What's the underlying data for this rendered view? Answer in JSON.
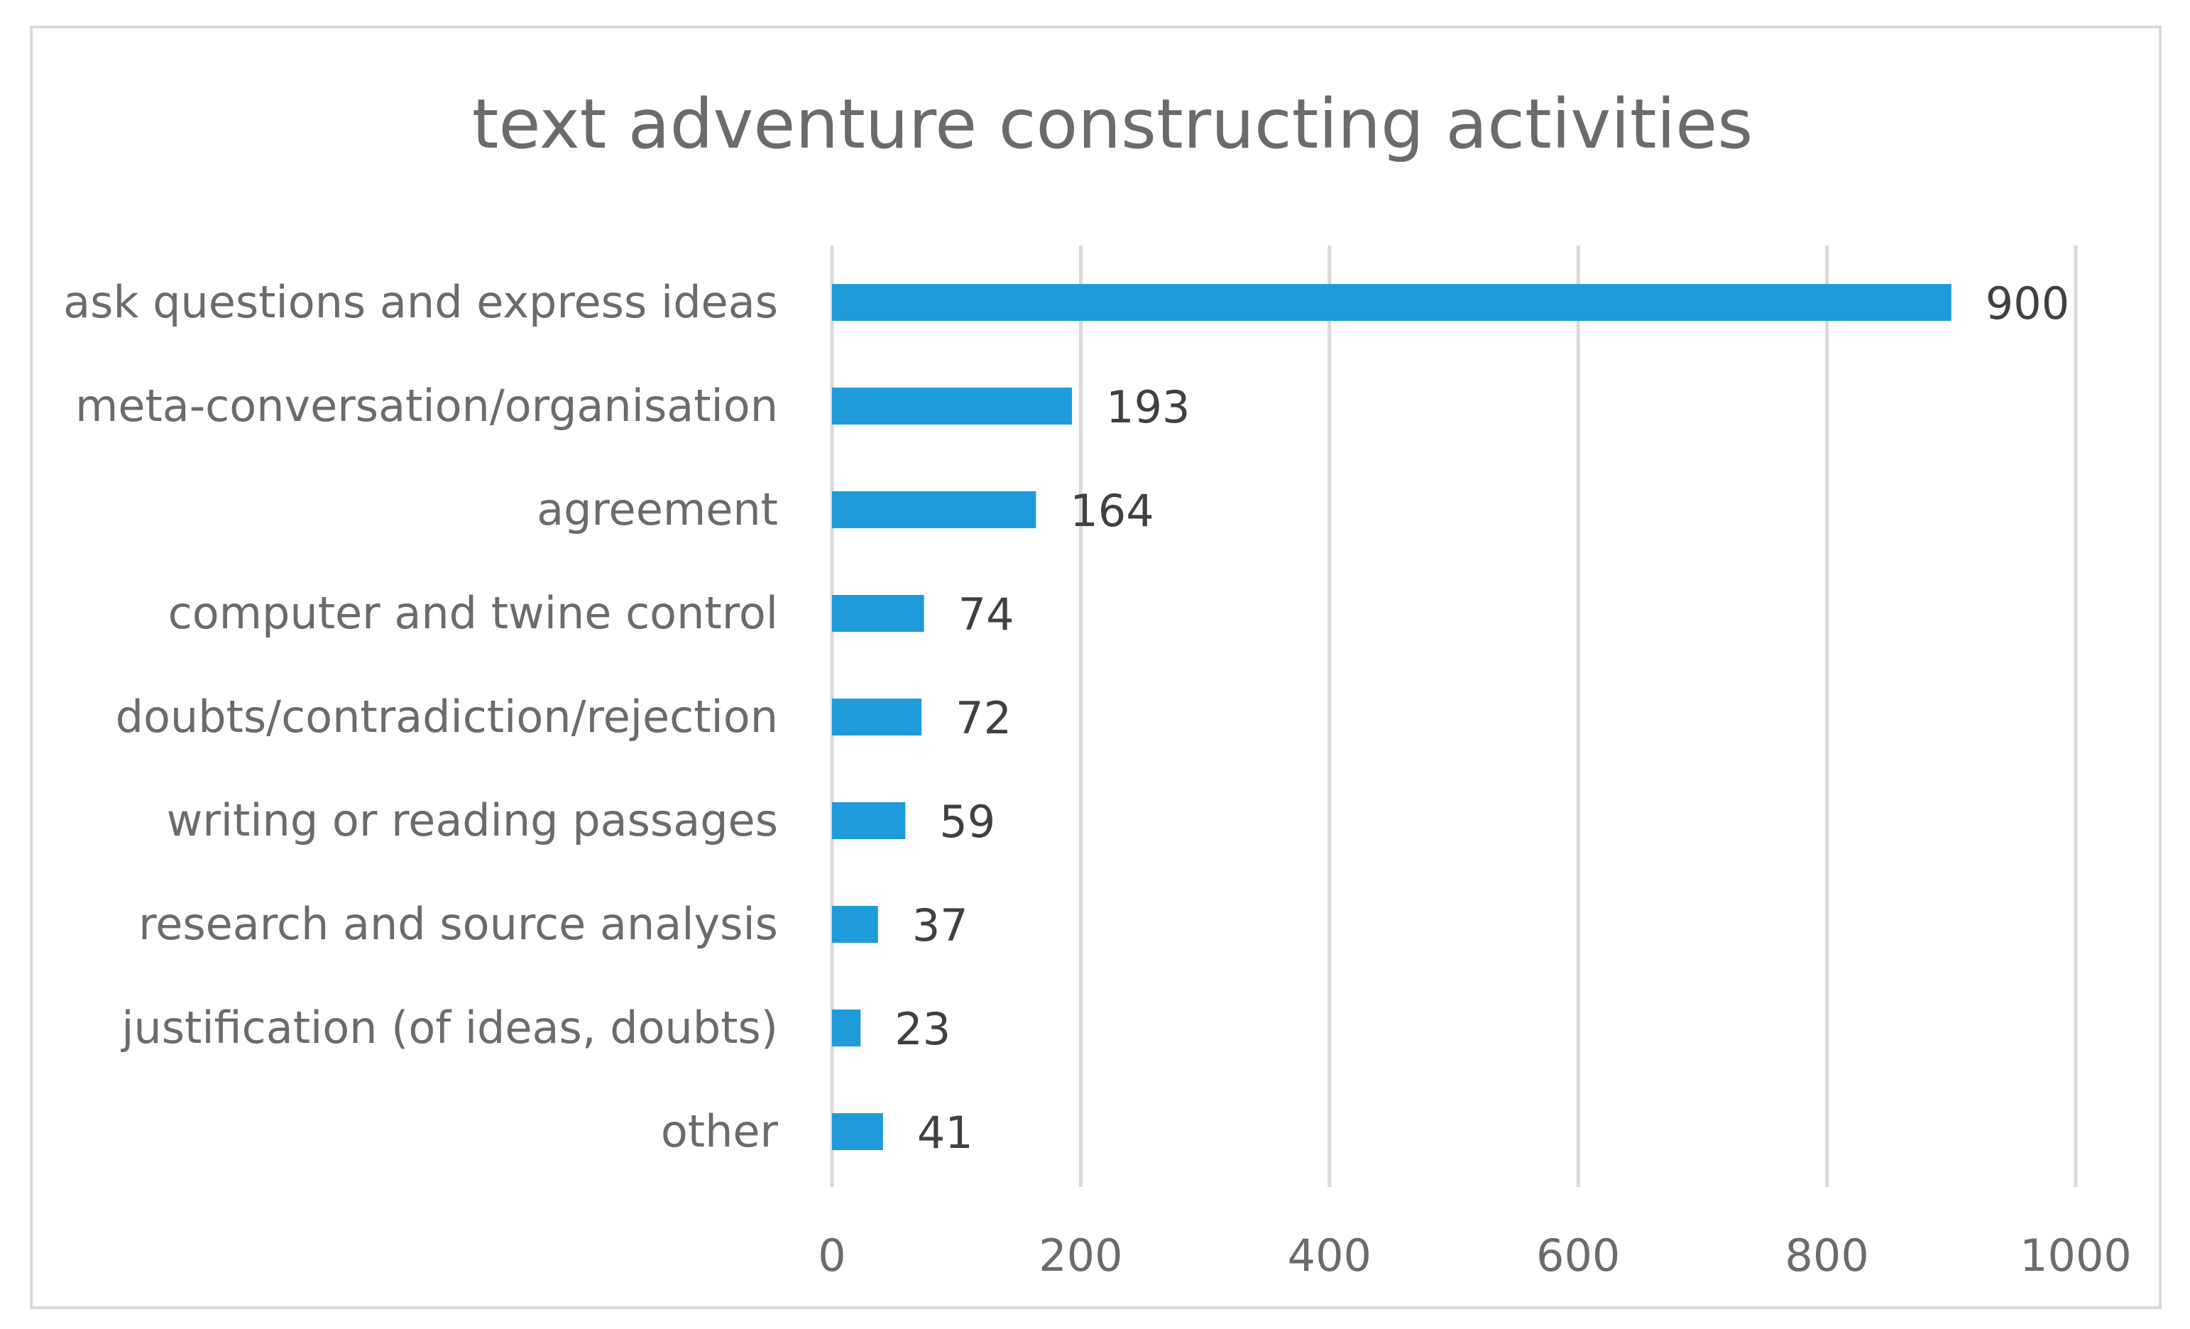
{
  "chart_data": {
    "type": "bar",
    "orientation": "horizontal",
    "title": "text adventure constructing activities",
    "categories": [
      "ask questions and express ideas",
      "meta-conversation/organisation",
      "agreement",
      "computer and twine control",
      "doubts/contradiction/rejection",
      "writing or reading passages",
      "research and source analysis",
      "justification (of ideas, doubts)",
      "other"
    ],
    "values": [
      900,
      193,
      164,
      74,
      72,
      59,
      37,
      23,
      41
    ],
    "xlim": [
      0,
      1000
    ],
    "xticks": [
      0,
      200,
      400,
      600,
      800,
      1000
    ],
    "grid": true,
    "legend": "none",
    "bar_color": "#1f9bdb",
    "xlabel": "",
    "ylabel": ""
  }
}
